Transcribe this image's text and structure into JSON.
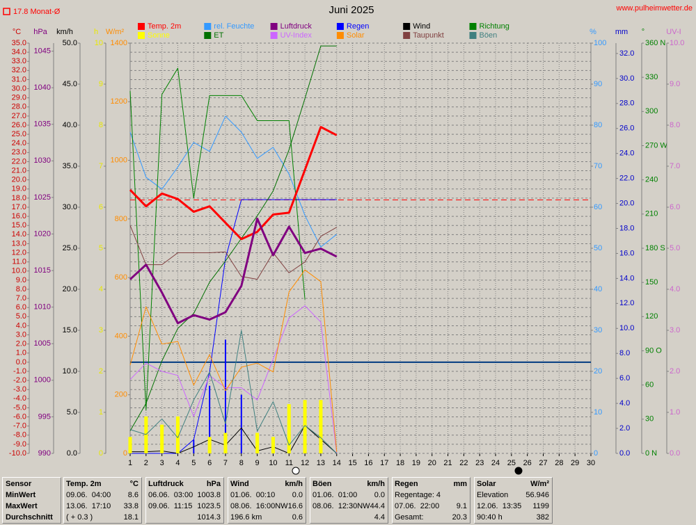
{
  "chart_data": {
    "type": "line",
    "title": "Juni 2025",
    "site": "www.pulheimwetter.de",
    "monthly_average": {
      "value": 17.8,
      "label": "17.8 Monat-Ø",
      "color": "#ff0000",
      "axis": 0
    },
    "grid": true,
    "x": [
      1,
      2,
      3,
      4,
      5,
      6,
      7,
      8,
      9,
      10,
      11,
      12,
      13,
      14
    ],
    "xlim": [
      1,
      30
    ],
    "xticks": [
      1,
      2,
      3,
      4,
      5,
      6,
      7,
      8,
      9,
      10,
      11,
      12,
      13,
      14,
      15,
      16,
      17,
      18,
      19,
      20,
      21,
      22,
      23,
      24,
      25,
      26,
      27,
      28,
      29,
      30
    ],
    "axes": [
      {
        "label": "°C",
        "color": "#cc0000",
        "lim": [
          -10,
          35
        ],
        "ticks": [
          {
            "value": 35,
            "label": "35.0"
          },
          {
            "value": 34,
            "label": "34.0"
          },
          {
            "value": 33,
            "label": "33.0"
          },
          {
            "value": 32,
            "label": "32.0"
          },
          {
            "value": 31,
            "label": "31.0"
          },
          {
            "value": 30,
            "label": "30.0"
          },
          {
            "value": 29,
            "label": "29.0"
          },
          {
            "value": 28,
            "label": "28.0"
          },
          {
            "value": 27,
            "label": "27.0"
          },
          {
            "value": 26,
            "label": "26.0"
          },
          {
            "value": 25,
            "label": "25.0"
          },
          {
            "value": 24,
            "label": "24.0"
          },
          {
            "value": 23,
            "label": "23.0"
          },
          {
            "value": 22,
            "label": "22.0"
          },
          {
            "value": 21,
            "label": "21.0"
          },
          {
            "value": 20,
            "label": "20.0"
          },
          {
            "value": 19,
            "label": "19.0"
          },
          {
            "value": 18,
            "label": "18.0"
          },
          {
            "value": 17,
            "label": "17.0"
          },
          {
            "value": 16,
            "label": "16.0"
          },
          {
            "value": 15,
            "label": "15.0"
          },
          {
            "value": 14,
            "label": "14.0"
          },
          {
            "value": 13,
            "label": "13.0"
          },
          {
            "value": 12,
            "label": "12.0"
          },
          {
            "value": 11,
            "label": "11.0"
          },
          {
            "value": 10,
            "label": "10.0"
          },
          {
            "value": 9,
            "label": "9.0"
          },
          {
            "value": 8,
            "label": "8.0"
          },
          {
            "value": 7,
            "label": "7.0"
          },
          {
            "value": 6,
            "label": "6.0"
          },
          {
            "value": 5,
            "label": "5.0"
          },
          {
            "value": 4,
            "label": "4.0"
          },
          {
            "value": 3,
            "label": "3.0"
          },
          {
            "value": 2,
            "label": "2.0"
          },
          {
            "value": 1,
            "label": "1.0"
          },
          {
            "value": 0,
            "label": "0.0"
          },
          {
            "value": -1,
            "label": "-1.0"
          },
          {
            "value": -2,
            "label": "-2.0"
          },
          {
            "value": -3,
            "label": "-3.0"
          },
          {
            "value": -4,
            "label": "-4.0"
          },
          {
            "value": -5,
            "label": "-5.0"
          },
          {
            "value": -6,
            "label": "-6.0"
          },
          {
            "value": -7,
            "label": "-7.0"
          },
          {
            "value": -8,
            "label": "-8.0"
          },
          {
            "value": -9,
            "label": "-9.0"
          },
          {
            "value": -10,
            "label": "-10.0"
          }
        ]
      },
      {
        "label": "hPa",
        "color": "#800080",
        "lim": [
          990,
          1046.1
        ],
        "ticks": [
          990,
          995,
          1000,
          1005,
          1010,
          1015,
          1020,
          1025,
          1030,
          1035,
          1040,
          1045
        ]
      },
      {
        "label": "km/h",
        "color": "#000000",
        "lim": [
          0,
          50
        ],
        "ticks": [
          {
            "value": 0,
            "label": "0.0"
          },
          {
            "value": 5,
            "label": "5.0"
          },
          {
            "value": 10,
            "label": "10.0"
          },
          {
            "value": 15,
            "label": "15.0"
          },
          {
            "value": 20,
            "label": "20.0"
          },
          {
            "value": 25,
            "label": "25.0"
          },
          {
            "value": 30,
            "label": "30.0"
          },
          {
            "value": 35,
            "label": "35.0"
          },
          {
            "value": 40,
            "label": "40.0"
          },
          {
            "value": 45,
            "label": "45.0"
          },
          {
            "value": 50,
            "label": "50.0"
          }
        ]
      },
      {
        "label": "h",
        "color": "#e8e800",
        "lim": [
          0,
          10
        ],
        "ticks": [
          0,
          1,
          2,
          3,
          4,
          5,
          6,
          7,
          8,
          9,
          10
        ]
      },
      {
        "label": "W/m²",
        "color": "#ff8c00",
        "lim": [
          0,
          1400
        ],
        "ticks": [
          0,
          200,
          400,
          600,
          800,
          1000,
          1200,
          1400
        ]
      },
      {
        "label": "%",
        "color": "#3399ff",
        "lim": [
          0,
          100
        ],
        "ticks": [
          0,
          10,
          20,
          30,
          40,
          50,
          60,
          70,
          80,
          90,
          100
        ]
      },
      {
        "label": "mm",
        "color": "#0000cc",
        "lim": [
          0,
          32.83
        ],
        "ticks": [
          {
            "value": 0,
            "label": "0.0"
          },
          {
            "value": 2,
            "label": "2.0"
          },
          {
            "value": 4,
            "label": "4.0"
          },
          {
            "value": 6,
            "label": "6.0"
          },
          {
            "value": 8,
            "label": "8.0"
          },
          {
            "value": 10,
            "label": "10.0"
          },
          {
            "value": 12,
            "label": "12.0"
          },
          {
            "value": 14,
            "label": "14.0"
          },
          {
            "value": 16,
            "label": "16.0"
          },
          {
            "value": 18,
            "label": "18.0"
          },
          {
            "value": 20,
            "label": "20.0"
          },
          {
            "value": 22,
            "label": "22.0"
          },
          {
            "value": 24,
            "label": "24.0"
          },
          {
            "value": 26,
            "label": "26.0"
          },
          {
            "value": 28,
            "label": "28.0"
          },
          {
            "value": 30,
            "label": "30.0"
          },
          {
            "value": 32,
            "label": "32.0"
          }
        ]
      },
      {
        "label": "°",
        "color": "#008000",
        "lim": [
          0,
          360
        ],
        "ticks": [
          {
            "value": 0,
            "label": "0  N"
          },
          30,
          60,
          {
            "value": 90,
            "label": "90  O"
          },
          120,
          150,
          {
            "value": 180,
            "label": "180  S"
          },
          210,
          240,
          {
            "value": 270,
            "label": "270 W"
          },
          300,
          330,
          {
            "value": 360,
            "label": "360 N"
          }
        ]
      },
      {
        "label": "UV-I",
        "color": "#cc66cc",
        "lim": [
          0,
          10
        ],
        "ticks": [
          {
            "value": 0,
            "label": "0.0"
          },
          {
            "value": 1,
            "label": "1.0"
          },
          {
            "value": 2,
            "label": "2.0"
          },
          {
            "value": 3,
            "label": "3.0"
          },
          {
            "value": 4,
            "label": "4.0"
          },
          {
            "value": 5,
            "label": "5.0"
          },
          {
            "value": 6,
            "label": "6.0"
          },
          {
            "value": 7,
            "label": "7.0"
          },
          {
            "value": 8,
            "label": "8.0"
          },
          {
            "value": 9,
            "label": "9.0"
          },
          {
            "value": 10,
            "label": "10.0"
          }
        ]
      }
    ],
    "series": [
      {
        "name": "Temp. 2m",
        "color": "#ff0000",
        "axis": 0,
        "linewidth": 3,
        "values": [
          18.9,
          17.1,
          18.5,
          17.9,
          16.5,
          17.1,
          15.3,
          13.5,
          14.3,
          16.2,
          16.4,
          21.1,
          25.8,
          24.9
        ]
      },
      {
        "name": "rel. Feuchte",
        "color": "#3399ff",
        "axis": 5,
        "values": [
          78.3,
          67.3,
          64.4,
          69.8,
          75.8,
          73.6,
          82.2,
          78.3,
          71.9,
          74.6,
          68.1,
          58.0,
          50.3,
          53.4
        ]
      },
      {
        "name": "Luftdruck",
        "color": "#800080",
        "axis": 1,
        "linewidth": 3,
        "values": [
          1013.8,
          1015.8,
          1012.0,
          1007.8,
          1008.9,
          1008.3,
          1009.3,
          1012.9,
          1022.1,
          1017.1,
          1021.0,
          1017.4,
          1018.0,
          1016.9
        ]
      },
      {
        "name": "Regen",
        "color": "#0000ff",
        "axis": 6,
        "type": "bar",
        "cumulative": true,
        "values": [
          0,
          0,
          0,
          0,
          1.1,
          5.4,
          9.1,
          4.7,
          0,
          0,
          0,
          0,
          0,
          0
        ]
      },
      {
        "name": "Wind",
        "color": "#000000",
        "axis": 2,
        "values": [
          0.2,
          0.2,
          0.3,
          0,
          0.8,
          1.7,
          1.0,
          3.1,
          0.3,
          0.8,
          0,
          3.4,
          1.7,
          0
        ]
      },
      {
        "name": "Richtung",
        "color": "#008000",
        "axis": 7,
        "values": [
          318,
          38,
          315,
          338,
          224,
          314,
          314,
          314,
          292,
          292,
          292,
          135,
          null,
          null
        ]
      },
      {
        "name": "Sonne",
        "color": "#ffff00",
        "axis": 3,
        "type": "bar",
        "values": [
          0.4,
          0.9,
          0.7,
          0.9,
          0,
          0.4,
          0.5,
          0,
          0.5,
          0.4,
          1.2,
          1.3,
          1.3,
          0
        ]
      },
      {
        "name": "ET",
        "color": "#007000",
        "axis": 6,
        "values": [
          1.8,
          4.0,
          7.4,
          10.0,
          11.2,
          13.7,
          15.4,
          17.2,
          19.0,
          21.0,
          24.3,
          28.4,
          32.6,
          32.6
        ]
      },
      {
        "name": "UV-Index",
        "color": "#cc66ff",
        "axis": 8,
        "values": [
          1.8,
          2.2,
          2.0,
          1.9,
          0.9,
          1.9,
          1.6,
          1.6,
          1.3,
          2.3,
          3.3,
          3.6,
          3.2,
          0.0
        ]
      },
      {
        "name": "Solar",
        "color": "#ff8c00",
        "axis": 4,
        "values": [
          301,
          500,
          373,
          382,
          233,
          337,
          214,
          294,
          308,
          278,
          551,
          626,
          586,
          5
        ]
      },
      {
        "name": "Taupunkt",
        "color": "#804040",
        "axis": 0,
        "values": [
          15.0,
          10.7,
          10.7,
          12.0,
          12.0,
          12.0,
          12.1,
          9.4,
          9.1,
          12.0,
          9.8,
          11.0,
          13.8,
          14.8
        ]
      },
      {
        "name": "Böen",
        "color": "#408080",
        "axis": 2,
        "values": [
          2.9,
          2.3,
          4.2,
          1.9,
          6.5,
          9.9,
          3.6,
          15.0,
          2.7,
          6.3,
          1.0,
          3.4,
          1.9,
          0
        ]
      }
    ]
  },
  "stats": {
    "row_labels": [
      "Sensor",
      "MinWert",
      "MaxWert",
      "Durchschnitt"
    ],
    "columns": [
      {
        "title": "Temp. 2m",
        "unit": "°C",
        "rows": [
          {
            "left": "09.06.  04:00",
            "right": "8.6"
          },
          {
            "left": "13.06.  17:10",
            "right": "33.8"
          },
          {
            "left": "( + 0.3 )",
            "right": "18.1"
          }
        ]
      },
      {
        "title": "Luftdruck",
        "unit": "hPa",
        "rows": [
          {
            "left": "06.06.  03:00",
            "right": "1003.8"
          },
          {
            "left": "09.06.  11:15",
            "right": "1023.5"
          },
          {
            "right": "1014.3"
          }
        ]
      },
      {
        "title": "Wind",
        "unit": "km/h",
        "rows": [
          {
            "left": "01.06.  00:10",
            "right": "0.0"
          },
          {
            "left": "08.06.  16:00NW",
            "right": "16.6"
          },
          {
            "left": "196.6 km",
            "right": "0.6"
          }
        ]
      },
      {
        "title": "Böen",
        "unit": "km/h",
        "rows": [
          {
            "left": "01.06.  01:00",
            "right": "0.0"
          },
          {
            "left": "08.06.  12:30NW",
            "right": "44.4"
          },
          {
            "right": "4.4"
          }
        ]
      },
      {
        "title": "Regen",
        "unit": "mm",
        "rows": [
          {
            "left": "Regentage: 4"
          },
          {
            "left": "07.06.  22:00",
            "right": "9.1"
          },
          {
            "left": "Gesamt:",
            "right": "20.3"
          }
        ]
      },
      {
        "title": "Solar",
        "unit": "W/m²",
        "rows": [
          {
            "left": "Elevation",
            "right": "56.946"
          },
          {
            "left": "12.06.  13:35",
            "right": "1199"
          },
          {
            "left": "90:40 h",
            "right": "382"
          }
        ]
      }
    ]
  }
}
